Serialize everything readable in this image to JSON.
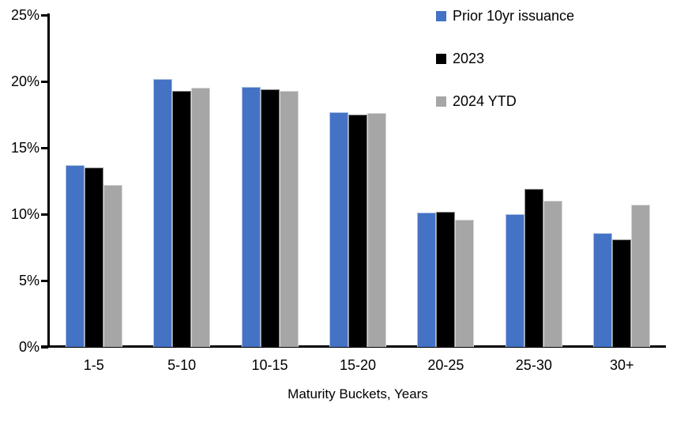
{
  "chart_data": {
    "type": "bar",
    "title": "",
    "xlabel": "Maturity Buckets, Years",
    "ylabel": "",
    "ylim": [
      0,
      25
    ],
    "grid": false,
    "legend_position": "top-right",
    "ytick_labels": [
      "0%",
      "5%",
      "10%",
      "15%",
      "20%",
      "25%"
    ],
    "ytick_values": [
      0,
      5,
      10,
      15,
      20,
      25
    ],
    "categories": [
      "1-5",
      "5-10",
      "10-15",
      "15-20",
      "20-25",
      "25-30",
      "30+"
    ],
    "series": [
      {
        "name": "Prior 10yr issuance",
        "color": "#4472C4",
        "values": [
          13.7,
          20.2,
          19.6,
          17.7,
          10.1,
          10.0,
          8.6
        ]
      },
      {
        "name": "2023",
        "color": "#000000",
        "values": [
          13.5,
          19.3,
          19.4,
          17.5,
          10.2,
          11.9,
          8.1
        ]
      },
      {
        "name": "2024 YTD",
        "color": "#A6A6A6",
        "values": [
          12.2,
          19.5,
          19.3,
          17.6,
          9.6,
          11.0,
          10.7
        ]
      }
    ]
  },
  "colors": {
    "axis": "#000000",
    "text": "#000000",
    "background": "#FFFFFF"
  }
}
